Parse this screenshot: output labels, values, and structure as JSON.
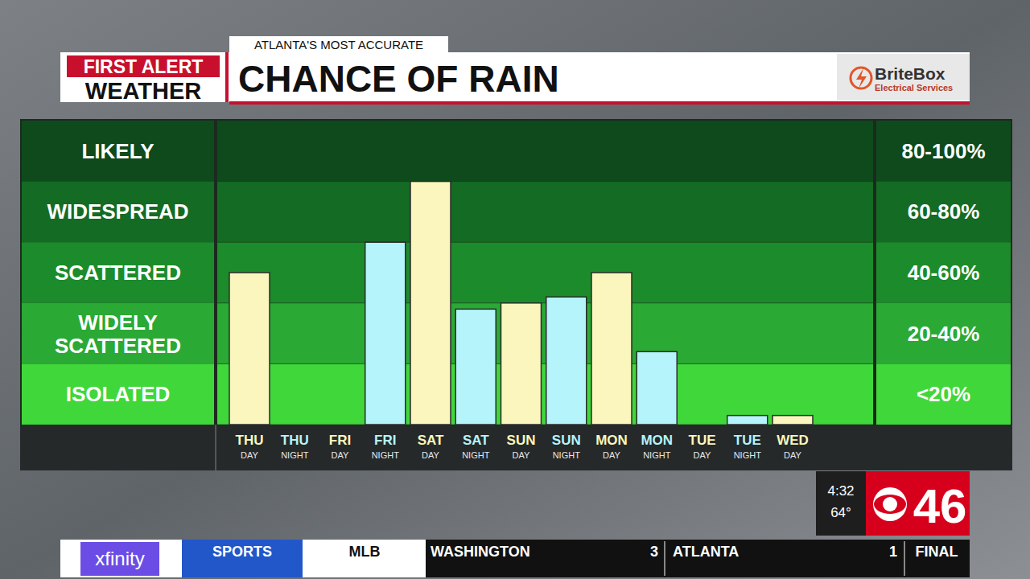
{
  "chart_data": {
    "type": "bar",
    "title": "CHANCE OF RAIN",
    "categories": [
      "THU DAY",
      "THU NIGHT",
      "FRI DAY",
      "FRI NIGHT",
      "SAT DAY",
      "SAT NIGHT",
      "SUN DAY",
      "SUN NIGHT",
      "MON DAY",
      "MON NIGHT",
      "TUE DAY",
      "TUE NIGHT",
      "WED DAY"
    ],
    "values": [
      50,
      0,
      0,
      60,
      80,
      38,
      40,
      42,
      50,
      24,
      0,
      3,
      3
    ],
    "colors": [
      "#faf6bd",
      "#b5f4fb",
      "#faf6bd",
      "#b5f4fb",
      "#faf6bd",
      "#b5f4fb",
      "#faf6bd",
      "#b5f4fb",
      "#faf6bd",
      "#b5f4fb",
      "#faf6bd",
      "#b5f4fb",
      "#faf6bd"
    ],
    "ylim": [
      0,
      100
    ],
    "yticks": [
      0,
      20,
      40,
      60,
      80,
      100
    ],
    "grid": true,
    "tick_labels": "x",
    "bands": [
      {
        "label": "LIKELY",
        "range_label": "80-100%",
        "from": 80,
        "to": 100
      },
      {
        "label": "WIDESPREAD",
        "range_label": "60-80%",
        "from": 60,
        "to": 80
      },
      {
        "label": "SCATTERED",
        "range_label": "40-60%",
        "from": 40,
        "to": 60
      },
      {
        "label": "WIDELY SCATTERED",
        "range_label": "20-40%",
        "from": 20,
        "to": 40
      },
      {
        "label": "ISOLATED",
        "range_label": "<20%",
        "from": 0,
        "to": 20
      }
    ]
  },
  "header": {
    "tagline": "ATLANTA'S MOST ACCURATE",
    "brand_top": "FIRST ALERT",
    "brand_bottom": "WEATHER",
    "sponsor": "BriteBox",
    "sponsor_sub": "Electrical Services"
  },
  "station": {
    "time": "4:32",
    "temp": "64°",
    "channel": "46"
  },
  "ticker": {
    "provider": "xfinity",
    "section": "SPORTS",
    "league": "MLB",
    "team1": "WASHINGTON",
    "score1": 3,
    "team2": "ATLANTA",
    "score2": 1,
    "status": "FINAL"
  }
}
